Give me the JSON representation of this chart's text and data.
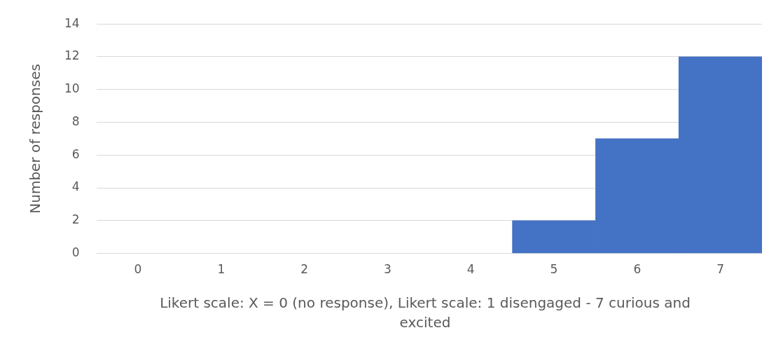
{
  "chart_data": {
    "type": "bar",
    "xlabel": "Likert scale: X = 0 (no response), Likert scale: 1 disengaged - 7 curious and excited",
    "ylabel": "Number of responses",
    "categories": [
      "0",
      "1",
      "2",
      "3",
      "4",
      "5",
      "6",
      "7"
    ],
    "values": [
      0,
      0,
      0,
      0,
      0,
      2,
      7,
      12
    ],
    "color": "#4472c4",
    "ylim": [
      0,
      14
    ],
    "yticks": [
      0,
      2,
      4,
      6,
      8,
      10,
      12,
      14
    ],
    "grid": "y",
    "legend": false
  }
}
